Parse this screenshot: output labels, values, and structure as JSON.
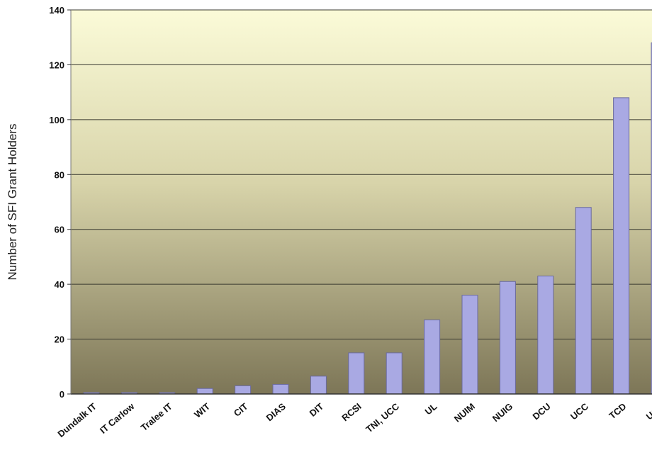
{
  "chart_data": {
    "type": "bar",
    "title": "",
    "xlabel": "",
    "ylabel": "Number of SFI Grant Holders",
    "ylim": [
      0,
      140
    ],
    "yticks": [
      0,
      20,
      40,
      60,
      80,
      100,
      120,
      140
    ],
    "grid": true,
    "categories": [
      "Dundalk IT",
      "IT Carlow",
      "Tralee IT",
      "WIT",
      "CIT",
      "DIAS",
      "DIT",
      "RCSI",
      "TNI, UCC",
      "UL",
      "NUIM",
      "NUIG",
      "DCU",
      "UCC",
      "TCD",
      "UCD"
    ],
    "values": [
      0.5,
      0.5,
      0.5,
      2,
      3,
      3.5,
      6.5,
      15,
      15,
      27,
      36,
      41,
      43,
      68,
      108,
      128
    ],
    "colors": {
      "bar_fill": "#a9a9e3",
      "bar_stroke": "#6a6a9e",
      "grid": "#3a3a30",
      "plot_bg_top": "#fbfbd8",
      "plot_bg_bottom": "#7d7657"
    }
  }
}
